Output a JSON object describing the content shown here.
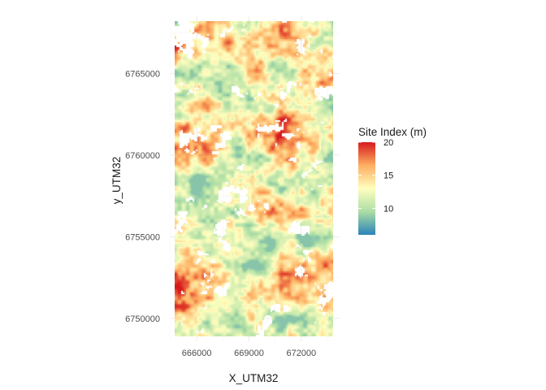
{
  "chart_data": {
    "type": "heatmap",
    "title": "",
    "xlabel": "X_UTM32",
    "ylabel": "y_UTM32",
    "xlim": [
      664500,
      674200
    ],
    "ylim": [
      6748600,
      6768500
    ],
    "x_ticks": [
      666000,
      669000,
      672000
    ],
    "x_tick_labels": [
      "666000",
      "669000",
      "672000"
    ],
    "y_ticks": [
      6750000,
      6755000,
      6760000,
      6765000
    ],
    "y_tick_labels": [
      "6750000",
      "6755000",
      "6760000",
      "6765000"
    ],
    "grid": true,
    "legend": {
      "title": "Site Index (m)",
      "position": "right",
      "ticks": [
        10,
        15,
        20
      ],
      "tick_labels": [
        "10",
        "15",
        "20"
      ],
      "range": [
        6,
        20
      ],
      "palette": [
        "#2b83ba",
        "#abdda4",
        "#ffffbf",
        "#fdae61",
        "#d7191c"
      ]
    },
    "value_range": [
      6,
      20
    ]
  }
}
